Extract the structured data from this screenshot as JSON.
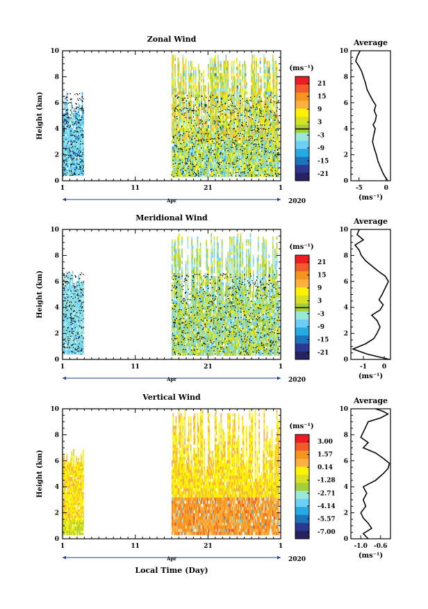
{
  "figure": {
    "xlabel": "Local Time (Day)",
    "year_label": "2020",
    "month_label": "Apr",
    "avg_unit_label": "(ms⁻¹)",
    "colorbar_unit_label": "(ms⁻¹)"
  },
  "chart_data": [
    {
      "type": "heatmap",
      "title": "Zonal Wind",
      "ylabel": "Height (km)",
      "xlim": [
        1,
        31
      ],
      "ylim": [
        0,
        10
      ],
      "x_ticks": [
        "1",
        "11",
        "21",
        "1"
      ],
      "y_ticks": [
        "0",
        "2",
        "4",
        "6",
        "8",
        "10"
      ],
      "colorbar": {
        "ticks": [
          "21",
          "15",
          "9",
          "3",
          "-3",
          "-9",
          "-15",
          "-21"
        ],
        "range": [
          -24,
          24
        ]
      },
      "data_coverage": [
        {
          "x_range": [
            1.0,
            3.9
          ],
          "y_range": [
            0.4,
            6.8
          ],
          "cmp": "easterly (-3 to -9), some -9 to -15"
        },
        {
          "x_range": [
            16.0,
            30.8
          ],
          "y_range": [
            0.3,
            9.7
          ],
          "cmp": "mixed easterly/westerly, up to +15"
        }
      ],
      "average_profile": {
        "title": "Average",
        "xlim": [
          -6.5,
          0.8
        ],
        "x_ticks": [
          "-5",
          "0"
        ],
        "height": [
          0.0,
          0.3,
          0.6,
          1.0,
          1.5,
          2.0,
          2.5,
          3.0,
          3.5,
          4.0,
          4.3,
          4.6,
          5.0,
          5.4,
          5.8,
          6.2,
          6.6,
          7.0,
          7.5,
          8.0,
          8.4,
          8.8,
          9.2,
          9.6,
          10.0
        ],
        "values": [
          0.3,
          -0.2,
          -0.6,
          -1.0,
          -1.5,
          -1.8,
          -2.2,
          -2.5,
          -2.3,
          -2.0,
          -2.4,
          -2.0,
          -1.8,
          -2.2,
          -1.9,
          -2.5,
          -3.0,
          -3.5,
          -3.8,
          -4.2,
          -4.5,
          -5.0,
          -5.6,
          -5.3,
          -4.8
        ]
      }
    },
    {
      "type": "heatmap",
      "title": "Meridional Wind",
      "ylabel": "Height (km)",
      "xlim": [
        1,
        31
      ],
      "ylim": [
        0,
        10
      ],
      "x_ticks": [
        "1",
        "11",
        "21",
        "1"
      ],
      "y_ticks": [
        "0",
        "2",
        "4",
        "6",
        "8",
        "10"
      ],
      "colorbar": {
        "ticks": [
          "21",
          "15",
          "9",
          "3",
          "-3",
          "-9",
          "-15",
          "-21"
        ],
        "range": [
          -24,
          24
        ]
      },
      "data_coverage": [
        {
          "x_range": [
            1.0,
            3.9
          ],
          "y_range": [
            0.4,
            6.8
          ],
          "cmp": "mostly -3 to -9"
        },
        {
          "x_range": [
            16.0,
            30.8
          ],
          "y_range": [
            0.3,
            9.7
          ],
          "cmp": "mixed, -9 to +9"
        }
      ],
      "average_profile": {
        "title": "Average",
        "xlim": [
          -1.6,
          0.3
        ],
        "x_ticks": [
          "-1",
          "0"
        ],
        "height": [
          0.0,
          0.4,
          0.8,
          1.2,
          1.6,
          2.0,
          2.5,
          3.0,
          3.4,
          3.8,
          4.2,
          4.6,
          5.0,
          5.5,
          6.0,
          6.4,
          6.8,
          7.2,
          7.6,
          8.0,
          8.4,
          8.8,
          9.2,
          9.6,
          10.0
        ],
        "values": [
          0.25,
          -0.8,
          -1.5,
          -0.9,
          -0.5,
          -0.35,
          -0.2,
          -0.35,
          -0.6,
          -0.2,
          -0.05,
          -0.25,
          -0.1,
          0.05,
          0.2,
          0.05,
          -0.3,
          -0.6,
          -0.9,
          -1.1,
          -1.2,
          -1.4,
          -1.0,
          -1.3,
          -1.2
        ]
      }
    },
    {
      "type": "heatmap",
      "title": "Vertical Wind",
      "ylabel": "Height (km)",
      "xlim": [
        1,
        31
      ],
      "ylim": [
        0,
        10
      ],
      "x_ticks": [
        "1",
        "11",
        "21",
        "1"
      ],
      "y_ticks": [
        "0",
        "2",
        "4",
        "6",
        "8",
        "10"
      ],
      "colorbar": {
        "ticks": [
          "3.00",
          "1.57",
          "0.14",
          "-1.28",
          "-2.71",
          "-4.14",
          "-5.57",
          "-7.00"
        ],
        "range": [
          -7.7,
          3.7
        ]
      },
      "data_coverage": [
        {
          "x_range": [
            1.0,
            3.9
          ],
          "y_range": [
            0.3,
            6.9
          ],
          "cmp": "near -1 to 1 (green/yellow), cyan near ground"
        },
        {
          "x_range": [
            16.0,
            30.8
          ],
          "y_range": [
            0.3,
            9.9
          ],
          "cmp": "0 to 2 below 3 km (yellow/orange), green aloft"
        }
      ],
      "average_profile": {
        "title": "Average",
        "xlim": [
          -1.2,
          -0.4
        ],
        "x_ticks": [
          "-1.0",
          "-0.6"
        ],
        "height": [
          0.0,
          0.4,
          0.8,
          1.2,
          1.6,
          2.0,
          2.5,
          3.0,
          3.5,
          4.0,
          4.5,
          5.0,
          5.4,
          5.8,
          6.2,
          6.6,
          7.0,
          7.4,
          7.8,
          8.2,
          8.6,
          9.0,
          9.3,
          9.6,
          9.8,
          10.0
        ],
        "values": [
          -0.85,
          -0.95,
          -0.78,
          -0.85,
          -0.95,
          -1.0,
          -0.9,
          -0.95,
          -0.88,
          -0.95,
          -0.7,
          -0.55,
          -0.45,
          -0.42,
          -0.55,
          -0.7,
          -0.95,
          -0.85,
          -1.0,
          -0.95,
          -0.9,
          -0.85,
          -0.6,
          -0.45,
          -0.55,
          -0.7
        ]
      }
    }
  ]
}
